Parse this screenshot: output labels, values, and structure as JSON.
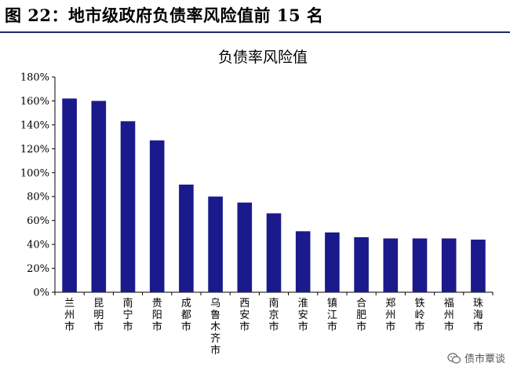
{
  "figure_heading": "图 22：地市级政府负债率风险值前 15 名",
  "watermark": {
    "text": "债市覃谈",
    "icon": "wechat-icon"
  },
  "colors": {
    "bar": "#1a1a8c",
    "axis": "#000000",
    "rule": "#1f2a6e"
  },
  "chart_data": {
    "type": "bar",
    "title": "负债率风险值",
    "xlabel": "",
    "ylabel": "",
    "categories": [
      "兰州市",
      "昆明市",
      "南宁市",
      "贵阳市",
      "成都市",
      "乌鲁木齐市",
      "西安市",
      "南京市",
      "淮安市",
      "镇江市",
      "合肥市",
      "郑州市",
      "铁岭市",
      "福州市",
      "珠海市"
    ],
    "series": [
      {
        "values": [
          162,
          160,
          143,
          127,
          90,
          80,
          75,
          66,
          51,
          50,
          46,
          45,
          45,
          45,
          44
        ]
      }
    ],
    "ylim": [
      0,
      180
    ],
    "yticks": [
      0,
      20,
      40,
      60,
      80,
      100,
      120,
      140,
      160,
      180
    ],
    "ytick_labels": [
      "0%",
      "20%",
      "40%",
      "60%",
      "80%",
      "100%",
      "120%",
      "140%",
      "160%",
      "180%"
    ],
    "grid": false,
    "legend": "none"
  }
}
